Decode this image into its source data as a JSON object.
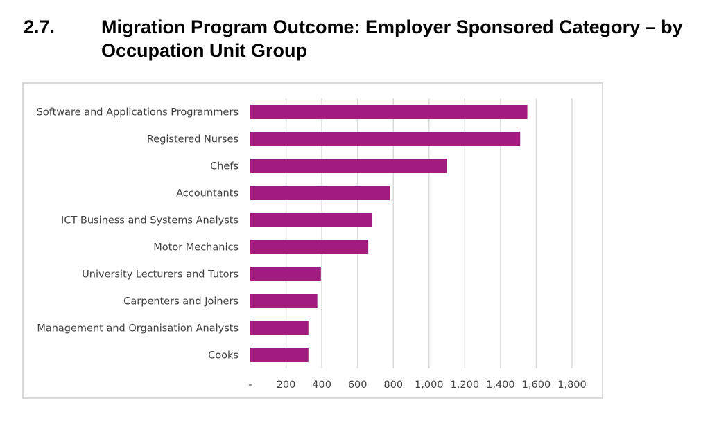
{
  "heading": {
    "number": "2.7.",
    "title": "Migration Program Outcome: Employer Sponsored Category – by Occupation Unit Group"
  },
  "chart_data": {
    "type": "bar",
    "orientation": "horizontal",
    "title": "",
    "xlabel": "",
    "ylabel": "",
    "categories": [
      "Software and Applications Programmers",
      "Registered Nurses",
      "Chefs",
      "Accountants",
      "ICT Business and Systems Analysts",
      "Motor Mechanics",
      "University Lecturers and Tutors",
      "Carpenters and Joiners",
      "Management and Organisation Analysts",
      "Cooks"
    ],
    "values": [
      1550,
      1510,
      1100,
      780,
      680,
      660,
      395,
      375,
      325,
      325
    ],
    "xlim": [
      0,
      1800
    ],
    "ticks": [
      0,
      200,
      400,
      600,
      800,
      1000,
      1200,
      1400,
      1600,
      1800
    ],
    "tick_labels": [
      "-",
      "200",
      "400",
      "600",
      "800",
      "1,000",
      "1,200",
      "1,400",
      "1,600",
      "1,800"
    ],
    "grid": "vertical",
    "bar_color": "#a21b7e",
    "grid_color": "#d9d9d9"
  }
}
